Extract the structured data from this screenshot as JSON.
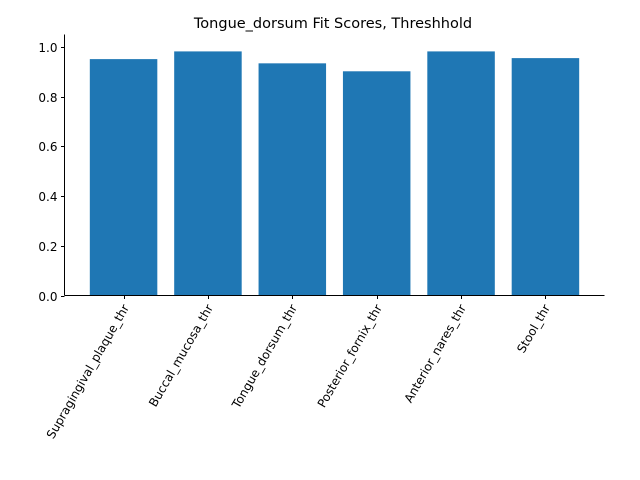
{
  "chart_data": {
    "type": "bar",
    "title": "Tongue_dorsum Fit Scores, Threshhold",
    "xlabel": "",
    "ylabel": "",
    "categories": [
      "Supragingival_plaque_thr",
      "Buccal_mucosa_thr",
      "Tongue_dorsum_thr",
      "Posterior_fornix_thr",
      "Anterior_nares_thr",
      "Stool_thr"
    ],
    "values": [
      0.951,
      0.982,
      0.934,
      0.902,
      0.982,
      0.955
    ],
    "ylim": [
      0,
      1.05
    ],
    "yticks": [
      0.0,
      0.2,
      0.4,
      0.6,
      0.8,
      1.0
    ],
    "ytick_labels": [
      "0.0",
      "0.2",
      "0.4",
      "0.6",
      "0.8",
      "1.0"
    ],
    "bar_color": "#1f77b4",
    "grid": false,
    "legend": "none",
    "xtick_rotation_deg": 60
  }
}
